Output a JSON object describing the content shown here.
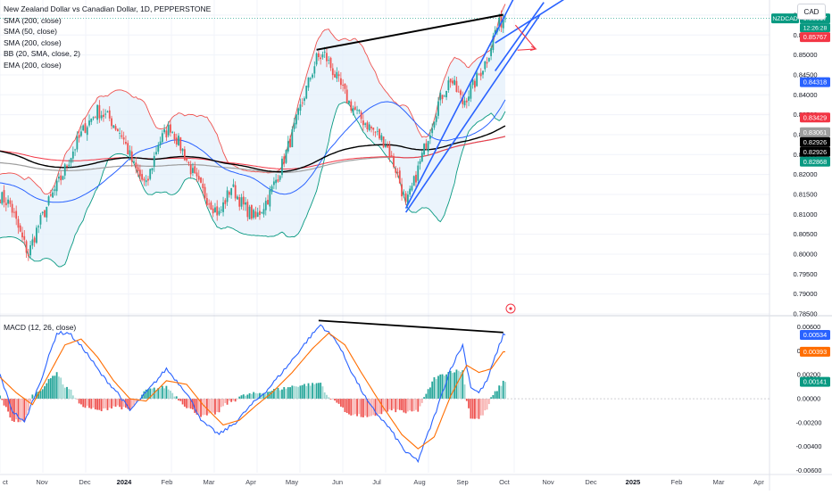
{
  "header": {
    "title": "New Zealand Dollar vs Canadian Dollar, 1D, PEPPERSTONE",
    "indicators": [
      "SMA (200, close)",
      "SMA (50, close)",
      "SMA (200, close)",
      "BB (20, SMA, close, 2)",
      "EMA (200, close)"
    ],
    "currency": "CAD"
  },
  "macd_panel": {
    "title": "MACD (12, 26, close)"
  },
  "colors": {
    "up": "#26a69a",
    "down": "#ef5350",
    "bb_upper": "#ef5350",
    "bb_lower": "#089981",
    "bb_fill": "#e3f0fb",
    "sma50": "#2962ff",
    "sma200_red": "#f23645",
    "sma200_gray": "#9e9e9e",
    "ema200": "#000000",
    "macd": "#2962ff",
    "signal": "#ff6d00",
    "hist_up": "#26a69a",
    "hist_down": "#ef5350",
    "trend_line": "#000000",
    "wedge_lines": "#2962ff",
    "arrow": "#f23645"
  },
  "price_axis": {
    "ticks": [
      "0.86000",
      "0.85500",
      "0.85000",
      "0.84500",
      "0.84000",
      "0.83500",
      "0.83000",
      "0.82500",
      "0.82000",
      "0.81500",
      "0.81000",
      "0.80500",
      "0.80000",
      "0.79500",
      "0.79000",
      "0.78500"
    ],
    "badges": [
      {
        "label": "NZDCAD",
        "value": "0.85917",
        "sub": "12:26:28",
        "color": "#089981"
      },
      {
        "value": "0.85767",
        "color": "#f23645"
      },
      {
        "value": "0.84318",
        "color": "#2962ff"
      },
      {
        "value": "0.83429",
        "color": "#f23645"
      },
      {
        "value": "0.83061",
        "color": "#9e9e9e"
      },
      {
        "value": "0.82926",
        "color": "#000000"
      },
      {
        "value": "0.82926",
        "color": "#000000"
      },
      {
        "value": "0.82868",
        "color": "#089981"
      }
    ]
  },
  "macd_axis": {
    "ticks": [
      "0.00600",
      "0.00400",
      "0.00200",
      "0.00000",
      "-0.00200",
      "-0.00400",
      "-0.00600"
    ],
    "badges": [
      {
        "value": "0.00534",
        "color": "#2962ff"
      },
      {
        "value": "0.00393",
        "color": "#ff6d00"
      },
      {
        "value": "0.00141",
        "color": "#089981"
      }
    ]
  },
  "time_axis": [
    "Nov",
    "Dec",
    "2024",
    "Feb",
    "Mar",
    "Apr",
    "May",
    "Jun",
    "Jul",
    "Aug",
    "Sep",
    "Oct",
    "Nov",
    "Dec",
    "2025",
    "Feb",
    "Mar",
    "Apr"
  ],
  "chart_data": {
    "type": "candlestick",
    "symbol": "NZDCAD",
    "interval": "1D",
    "ylim": [
      0.785,
      0.862
    ],
    "macd_ylim": [
      -0.0062,
      0.0068
    ],
    "months": [
      "Oct",
      "Nov",
      "Dec",
      "2024",
      "Feb",
      "Mar",
      "Apr",
      "May",
      "Jun",
      "Jul",
      "Aug",
      "Sep",
      "Oct"
    ],
    "close_path": [
      [
        0,
        0.8145
      ],
      [
        5,
        0.8125
      ],
      [
        10,
        0.805
      ],
      [
        14,
        0.8
      ],
      [
        18,
        0.806
      ],
      [
        24,
        0.813
      ],
      [
        30,
        0.819
      ],
      [
        36,
        0.826
      ],
      [
        42,
        0.832
      ],
      [
        48,
        0.836
      ],
      [
        54,
        0.834
      ],
      [
        60,
        0.83
      ],
      [
        66,
        0.822
      ],
      [
        72,
        0.817
      ],
      [
        78,
        0.828
      ],
      [
        84,
        0.832
      ],
      [
        90,
        0.826
      ],
      [
        96,
        0.819
      ],
      [
        102,
        0.814
      ],
      [
        108,
        0.81
      ],
      [
        114,
        0.817
      ],
      [
        120,
        0.812
      ],
      [
        126,
        0.809
      ],
      [
        132,
        0.814
      ],
      [
        138,
        0.821
      ],
      [
        144,
        0.83
      ],
      [
        150,
        0.84
      ],
      [
        156,
        0.849
      ],
      [
        160,
        0.85
      ],
      [
        166,
        0.844
      ],
      [
        172,
        0.838
      ],
      [
        178,
        0.834
      ],
      [
        184,
        0.831
      ],
      [
        190,
        0.828
      ],
      [
        196,
        0.82
      ],
      [
        200,
        0.812
      ],
      [
        204,
        0.818
      ],
      [
        210,
        0.828
      ],
      [
        216,
        0.838
      ],
      [
        222,
        0.844
      ],
      [
        228,
        0.838
      ],
      [
        234,
        0.843
      ],
      [
        240,
        0.849
      ],
      [
        244,
        0.856
      ],
      [
        248,
        0.8592
      ]
    ],
    "macd_path": [
      [
        0,
        0.002
      ],
      [
        6,
        -0.001
      ],
      [
        12,
        -0.002
      ],
      [
        20,
        0.0015
      ],
      [
        28,
        0.0055
      ],
      [
        34,
        0.0055
      ],
      [
        42,
        0.004
      ],
      [
        50,
        0.002
      ],
      [
        58,
        0.0005
      ],
      [
        64,
        -0.001
      ],
      [
        72,
        0.0005
      ],
      [
        82,
        0.0025
      ],
      [
        92,
        0.0005
      ],
      [
        100,
        -0.002
      ],
      [
        108,
        -0.003
      ],
      [
        116,
        -0.002
      ],
      [
        124,
        -0.0005
      ],
      [
        132,
        0.0008
      ],
      [
        142,
        0.0028
      ],
      [
        152,
        0.005
      ],
      [
        158,
        0.0062
      ],
      [
        166,
        0.0048
      ],
      [
        174,
        0.002
      ],
      [
        182,
        -0.0005
      ],
      [
        192,
        -0.0025
      ],
      [
        200,
        -0.0045
      ],
      [
        206,
        -0.0052
      ],
      [
        214,
        -0.0015
      ],
      [
        222,
        0.0025
      ],
      [
        228,
        0.0045
      ],
      [
        232,
        0.001
      ],
      [
        236,
        0.0005
      ],
      [
        240,
        0.0015
      ],
      [
        244,
        0.0035
      ],
      [
        248,
        0.00534
      ]
    ],
    "signal_path": [
      [
        0,
        0.0018
      ],
      [
        8,
        0.0005
      ],
      [
        16,
        -0.0005
      ],
      [
        24,
        0.002
      ],
      [
        32,
        0.0045
      ],
      [
        40,
        0.005
      ],
      [
        48,
        0.0035
      ],
      [
        56,
        0.0015
      ],
      [
        64,
        0.0
      ],
      [
        72,
        -0.0002
      ],
      [
        82,
        0.0015
      ],
      [
        92,
        0.0012
      ],
      [
        100,
        -0.0005
      ],
      [
        110,
        -0.0022
      ],
      [
        118,
        -0.0018
      ],
      [
        126,
        -0.0006
      ],
      [
        134,
        0.0005
      ],
      [
        144,
        0.0022
      ],
      [
        154,
        0.0042
      ],
      [
        162,
        0.0055
      ],
      [
        170,
        0.0045
      ],
      [
        178,
        0.0022
      ],
      [
        188,
        -0.0005
      ],
      [
        198,
        -0.003
      ],
      [
        206,
        -0.0042
      ],
      [
        214,
        -0.0032
      ],
      [
        222,
        0.0002
      ],
      [
        230,
        0.0028
      ],
      [
        236,
        0.0022
      ],
      [
        242,
        0.0025
      ],
      [
        248,
        0.00393
      ]
    ],
    "last": {
      "close": 0.85917,
      "macd": 0.00534,
      "signal": 0.00393,
      "histogram": 0.00141
    }
  }
}
